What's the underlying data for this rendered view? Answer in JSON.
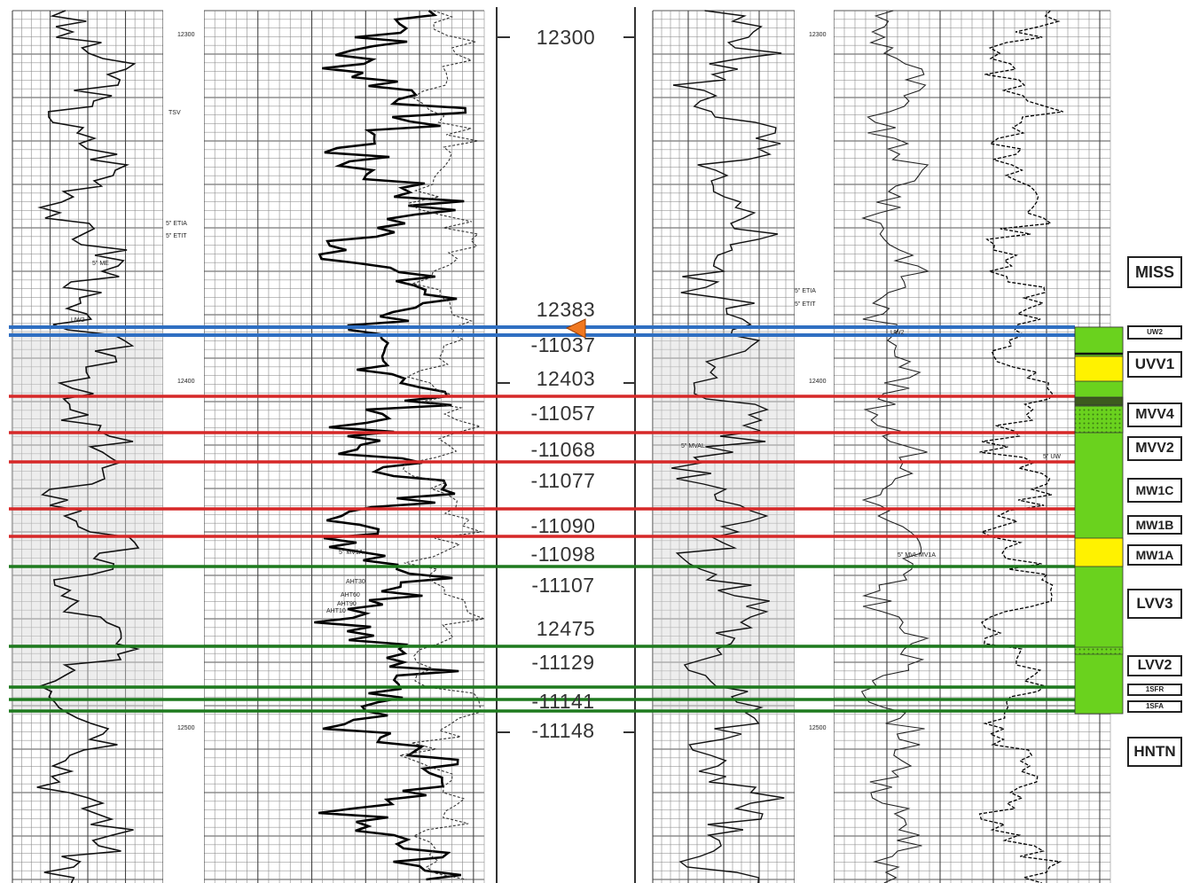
{
  "depth_labels": [
    "12300",
    "12383",
    "-11037",
    "12403",
    "-11057",
    "-11068",
    "-11077",
    "-11090",
    "-11098",
    "-11107",
    "12475",
    "-11129",
    "-11141",
    "-11148"
  ],
  "formation_tops": [
    "MISS",
    "UW2",
    "UVV1",
    "MVV4",
    "MVV2",
    "MW1C",
    "MW1B",
    "MW1A",
    "LVV3",
    "LVV2",
    "1SFR",
    "1SFA",
    "HNTN"
  ],
  "track_annotations": {
    "left_depth_marks": [
      "12300",
      "12400",
      "12500"
    ],
    "right_depth_marks": [
      "12300",
      "12400",
      "12500"
    ],
    "left_picks": [
      "TSV",
      "5\" ETIA",
      "5\" ETIT",
      "5\" ME",
      "UW2",
      "5\" MV1A",
      "AHT30",
      "AHT60",
      "AHT90",
      "AHT10"
    ],
    "right_picks": [
      "5\" ETIA",
      "5\" ETIT",
      "UW2",
      "5\" MVAL",
      "5\" UW",
      "5\" MVL",
      "MV1A"
    ]
  },
  "colors": {
    "blue_line": "#2f6fc2",
    "red_line": "#d62828",
    "green_line": "#1e7a1e",
    "column_green": "#6ad21e",
    "column_yellow": "#fff200",
    "column_dark": "#3c5a1e",
    "marker_orange": "#f07820"
  }
}
